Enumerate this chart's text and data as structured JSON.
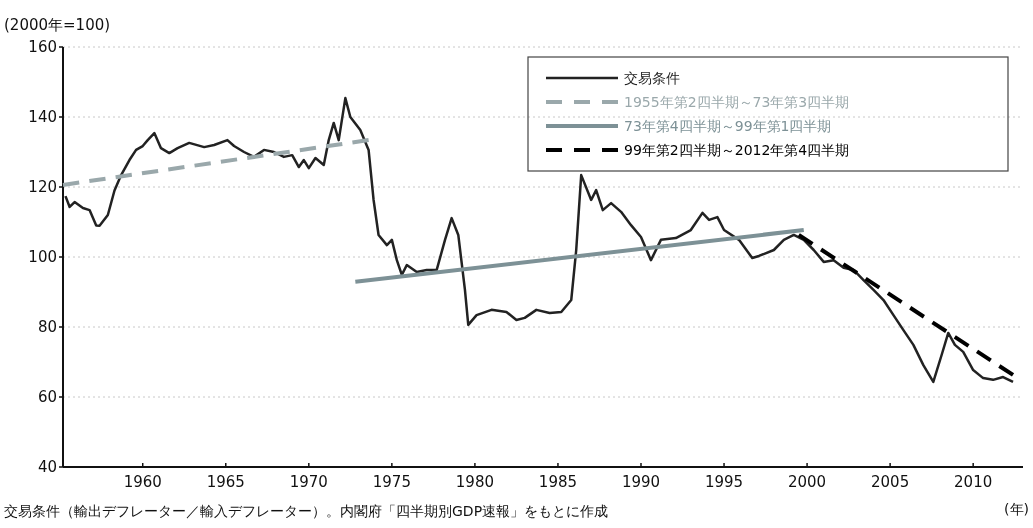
{
  "chart_data": {
    "type": "line",
    "ylabel": "(2000年=100)",
    "xlabel": "(年)",
    "annotations": [
      "交易条件（輸出デフレーター／輸入デフレーター）。内閣府「四半期別GDP速報」をもとに作成"
    ],
    "xlim": [
      1955.2,
      2013
    ],
    "xticks": [
      1960,
      1965,
      1970,
      1975,
      1980,
      1985,
      1990,
      1995,
      2000,
      2005,
      2010
    ],
    "ylim": [
      40,
      160
    ],
    "yticks": [
      40,
      60,
      80,
      100,
      120,
      140,
      160
    ],
    "grid": "y",
    "legend": "top right",
    "series": [
      {
        "name": "交易条件",
        "color": "#222222",
        "line_style": "solid",
        "x": [
          1955.35,
          1955.6,
          1955.9,
          1956.4,
          1956.8,
          1957.2,
          1957.4,
          1957.9,
          1958.3,
          1958.7,
          1959.2,
          1959.6,
          1960,
          1960.3,
          1960.7,
          1961.1,
          1961.6,
          1962.1,
          1962.8,
          1963.7,
          1964.3,
          1965.1,
          1965.5,
          1966.1,
          1966.7,
          1967.3,
          1967.9,
          1968.5,
          1969,
          1969.4,
          1969.7,
          1970,
          1970.4,
          1970.9,
          1971.2,
          1971.5,
          1971.8,
          1972.2,
          1972.5,
          1973.1,
          1973.6,
          1973.9,
          1974.2,
          1974.7,
          1975,
          1975.3,
          1975.6,
          1975.9,
          1976.5,
          1977.1,
          1977.7,
          1978.2,
          1978.6,
          1979,
          1979.4,
          1979.6,
          1980.1,
          1981,
          1981.9,
          1982.5,
          1983,
          1983.7,
          1984.5,
          1985.2,
          1985.8,
          1986.1,
          1986.4,
          1987,
          1987.3,
          1987.7,
          1988.2,
          1988.8,
          1989.4,
          1990,
          1990.6,
          1991.2,
          1992.1,
          1993,
          1993.7,
          1994.1,
          1994.6,
          1995,
          1995.9,
          1996.7,
          1997.1,
          1998,
          1998.6,
          1999.2,
          1999.8,
          2000.4,
          2001,
          2001.6,
          2002.2,
          2002.8,
          2003.4,
          2004,
          2004.6,
          2005.2,
          2005.8,
          2006.4,
          2007,
          2007.6,
          2008.1,
          2008.5,
          2008.9,
          2009.4,
          2010,
          2010.6,
          2011.2,
          2011.8,
          2012.4
        ],
        "values": [
          117.4,
          114.3,
          115.7,
          114,
          113.4,
          109,
          108.9,
          112,
          119,
          123.4,
          127.7,
          130.6,
          131.7,
          133.4,
          135.4,
          131.1,
          129.7,
          131.1,
          132.6,
          131.4,
          132,
          133.4,
          131.7,
          130,
          128.6,
          130.6,
          130,
          128.6,
          129.1,
          125.7,
          127.7,
          125.4,
          128.3,
          126.3,
          133.4,
          138.3,
          133.4,
          145.4,
          140,
          136.3,
          130.6,
          116.3,
          106.3,
          103.4,
          104.9,
          99.1,
          94.9,
          97.7,
          95.7,
          96.3,
          96.3,
          104.9,
          111.1,
          106.3,
          90.6,
          80.6,
          83.4,
          84.9,
          84.3,
          82,
          82.6,
          84.9,
          84,
          84.3,
          87.7,
          102,
          123.4,
          116.3,
          119.1,
          113.4,
          115.4,
          112.9,
          109.1,
          105.7,
          99.1,
          104.9,
          105.4,
          107.7,
          112.6,
          110.6,
          111.4,
          107.7,
          104.9,
          99.7,
          100.3,
          102,
          104.9,
          106.3,
          104.9,
          102,
          98.6,
          99.1,
          96.9,
          96.3,
          93.4,
          90.6,
          87.7,
          83.4,
          79.1,
          74.9,
          69.1,
          64.3,
          72,
          78.3,
          74.9,
          72.9,
          67.7,
          65.4,
          64.9,
          65.7,
          64.3
        ]
      },
      {
        "name": "1955年第2四半期～73年第3四半期",
        "color": "#9aa8ab",
        "line_style": "dashed",
        "x": [
          1955.2,
          1973.6
        ],
        "values": [
          120.6,
          133.4
        ]
      },
      {
        "name": "73年第4四半期～99年第1四半期",
        "color": "#7d9196",
        "line_style": "solid",
        "x": [
          1972.8,
          1999.8
        ],
        "values": [
          92.9,
          107.7
        ]
      },
      {
        "name": "99年第2四半期～2012年第4四半期",
        "color": "#000000",
        "line_style": "dashed",
        "x": [
          1999.5,
          2012.4
        ],
        "values": [
          106.3,
          66.3
        ]
      }
    ]
  }
}
